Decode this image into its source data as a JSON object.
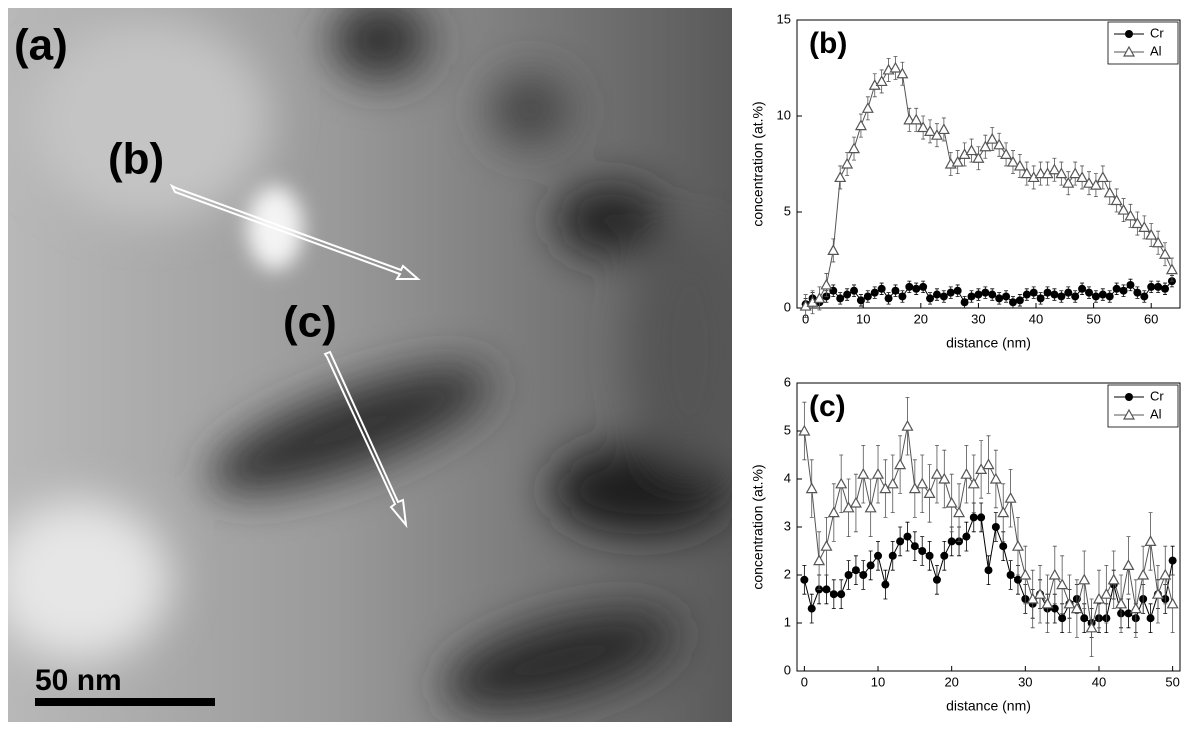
{
  "image": {
    "label": "(a)",
    "profile_labels": [
      "(b)",
      "(c)"
    ],
    "scale_bar": "50 nm"
  },
  "chart_data": [
    {
      "type": "line",
      "title": "(b)",
      "x_label": "distance (nm)",
      "y_label": "concentration (at.%)",
      "x": [
        0,
        1.2,
        2.4,
        3.6,
        4.8,
        6,
        7.2,
        8.4,
        9.6,
        10.8,
        12,
        13.2,
        14.4,
        15.6,
        16.8,
        18,
        19.2,
        20.4,
        21.6,
        22.8,
        24,
        25.2,
        26.4,
        27.6,
        28.8,
        30,
        31.2,
        32.4,
        33.6,
        34.8,
        36,
        37.2,
        38.4,
        39.6,
        40.8,
        42,
        43.2,
        44.4,
        45.6,
        46.8,
        48,
        49.2,
        50.4,
        51.6,
        52.8,
        54,
        55.2,
        56.4,
        57.6,
        58.8,
        60,
        61.2,
        62.4,
        63.6
      ],
      "series": [
        {
          "name": "Cr",
          "color": "#000000",
          "marker": "circle",
          "error": 0.3,
          "values": [
            0.2,
            0.5,
            0.3,
            0.6,
            0.9,
            0.5,
            0.7,
            0.9,
            0.4,
            0.6,
            0.8,
            1,
            0.5,
            0.9,
            0.6,
            1.1,
            1,
            1.1,
            0.5,
            0.7,
            0.6,
            0.8,
            0.9,
            0.3,
            0.6,
            0.7,
            0.8,
            0.7,
            0.5,
            0.6,
            0.3,
            0.4,
            0.7,
            0.8,
            0.5,
            0.8,
            0.7,
            0.6,
            0.8,
            0.6,
            1,
            0.8,
            0.6,
            0.7,
            0.6,
            1,
            0.9,
            1.2,
            0.8,
            0.6,
            1.1,
            1.1,
            1,
            1.4
          ]
        },
        {
          "name": "Al",
          "color": "#555555",
          "marker": "triangle",
          "error": 0.6,
          "values": [
            0.1,
            0.3,
            0.5,
            1.2,
            3,
            6.8,
            7.5,
            8.3,
            9.5,
            10.4,
            11.6,
            11.8,
            12.4,
            12.5,
            12.2,
            9.8,
            9.8,
            9.4,
            9.2,
            9,
            9.3,
            7.5,
            7.6,
            8,
            8.2,
            7.8,
            8.4,
            8.8,
            8.5,
            8,
            7.6,
            7.4,
            7,
            6.8,
            7,
            7,
            7.2,
            7,
            6.5,
            7,
            6.8,
            6.5,
            6.4,
            6.8,
            6,
            5.6,
            5.1,
            4.8,
            4.4,
            4.2,
            3.8,
            3.4,
            2.8,
            2
          ]
        }
      ],
      "xlim": [
        -1.5,
        65
      ],
      "xticks": [
        0,
        10,
        20,
        30,
        40,
        50,
        60
      ],
      "ylim": [
        0,
        15
      ],
      "yticks": [
        0,
        5,
        10,
        15
      ],
      "legend": "upper right"
    },
    {
      "type": "line",
      "title": "(c)",
      "x_label": "distance (nm)",
      "y_label": "concentration (at.%)",
      "x": [
        0,
        1,
        2,
        3,
        4,
        5,
        6,
        7,
        8,
        9,
        10,
        11,
        12,
        13,
        14,
        15,
        16,
        17,
        18,
        19,
        20,
        21,
        22,
        23,
        24,
        25,
        26,
        27,
        28,
        29,
        30,
        31,
        32,
        33,
        34,
        35,
        36,
        37,
        38,
        39,
        40,
        41,
        42,
        43,
        44,
        45,
        46,
        47,
        48,
        49,
        50
      ],
      "series": [
        {
          "name": "Cr",
          "color": "#000000",
          "marker": "circle",
          "error": 0.3,
          "values": [
            1.9,
            1.3,
            1.7,
            1.7,
            1.6,
            1.6,
            2,
            2.1,
            2,
            2.2,
            2.4,
            1.8,
            2.4,
            2.7,
            2.8,
            2.6,
            2.5,
            2.4,
            1.9,
            2.4,
            2.7,
            2.7,
            2.8,
            3.2,
            3.2,
            2.1,
            3,
            2.6,
            2,
            1.9,
            1.5,
            1.4,
            1.6,
            1.3,
            1.3,
            1.1,
            1.4,
            1.5,
            1.1,
            1,
            1.1,
            1.1,
            1.8,
            1.2,
            1.2,
            1.1,
            1.5,
            1.1,
            1.6,
            1.5,
            2.3
          ]
        },
        {
          "name": "Al",
          "color": "#555555",
          "marker": "triangle",
          "error": 0.6,
          "values": [
            5,
            3.8,
            2.3,
            2.6,
            3.3,
            3.9,
            3.4,
            3.5,
            4.1,
            3.4,
            4.1,
            3.8,
            3.9,
            4.3,
            5.1,
            3.8,
            3.9,
            3.7,
            4.1,
            4,
            3.5,
            3.3,
            4.1,
            3.9,
            4.2,
            4.3,
            4,
            3.3,
            3.6,
            2.6,
            2,
            1.5,
            1.6,
            1.4,
            2,
            1.8,
            1.4,
            1.3,
            1.9,
            0.9,
            1.5,
            1.6,
            1.9,
            1.4,
            2.2,
            1.3,
            2,
            2.7,
            1.6,
            2,
            1.4
          ]
        }
      ],
      "xlim": [
        -1,
        51
      ],
      "xticks": [
        0,
        10,
        20,
        30,
        40,
        50
      ],
      "ylim": [
        0,
        6
      ],
      "yticks": [
        0,
        1,
        2,
        3,
        4,
        5,
        6
      ],
      "legend": "upper right"
    }
  ]
}
